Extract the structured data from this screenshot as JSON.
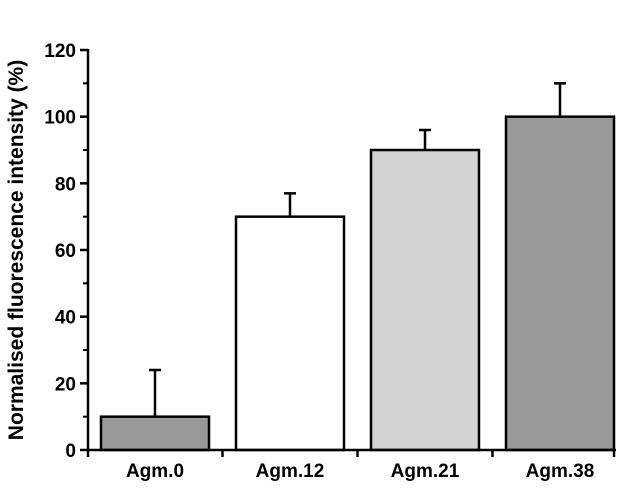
{
  "chart_data": {
    "type": "bar",
    "title": "",
    "xlabel": "",
    "ylabel": "Normalised fluorescence intensity (%)",
    "ylim": [
      0,
      120
    ],
    "yticks": [
      0,
      20,
      40,
      60,
      80,
      100,
      120
    ],
    "ytick_labels": [
      "0",
      "20",
      "40",
      "60",
      "80",
      "100",
      "120"
    ],
    "categories": [
      "Agm.0",
      "Agm.12",
      "Agm.21",
      "Agm.38"
    ],
    "values": [
      10,
      70,
      90,
      100
    ],
    "errors": [
      14,
      7,
      6,
      10
    ],
    "bar_colors": [
      "#999999",
      "#ffffff",
      "#d3d3d3",
      "#999999"
    ],
    "grid": false,
    "legend": "none"
  }
}
